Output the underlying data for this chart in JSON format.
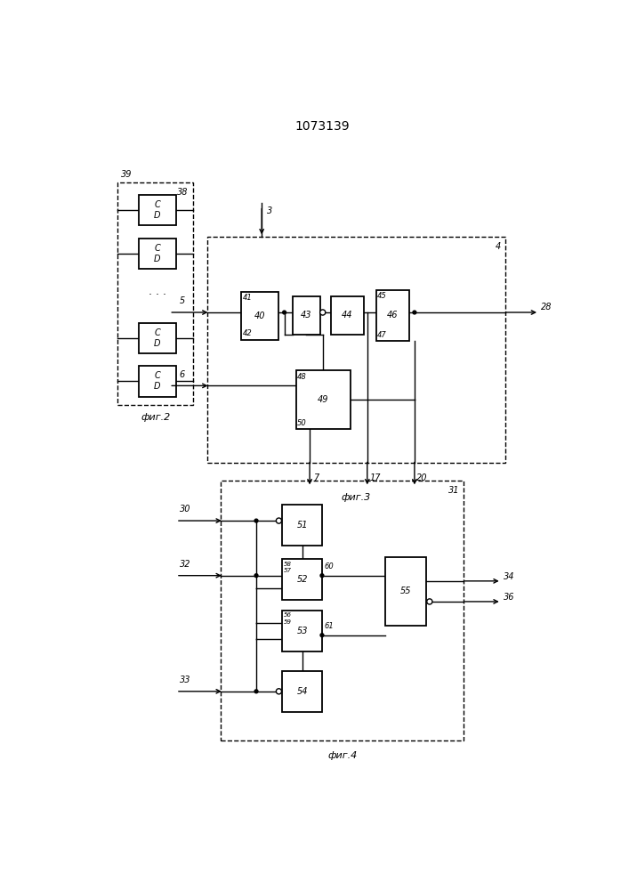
{
  "title": "1073139",
  "title_fontsize": 10,
  "fig2_label": "фиг.2",
  "fig3_label": "фиг.3",
  "fig4_label": "фиг.4",
  "bg_color": "#ffffff",
  "font_size": 7
}
